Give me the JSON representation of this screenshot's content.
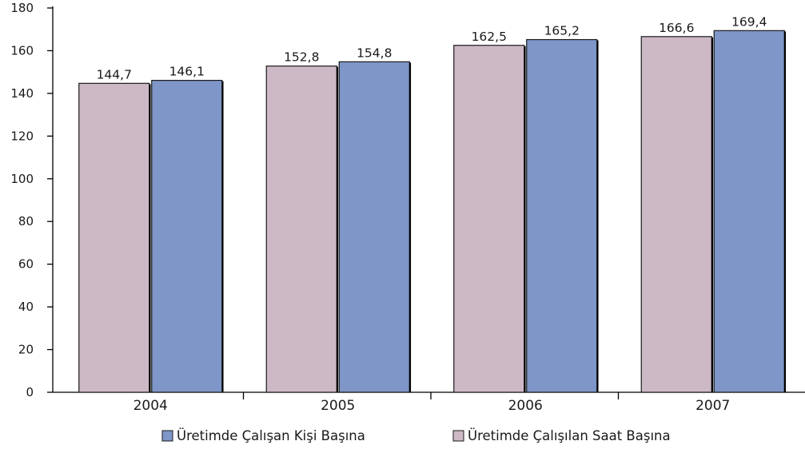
{
  "chart_data": {
    "type": "bar",
    "categories": [
      "2004",
      "2005",
      "2006",
      "2007"
    ],
    "series": [
      {
        "name": "Üretimde Çalışılan Saat Başına",
        "color": "#cdb9c6",
        "values": [
          144.7,
          152.8,
          162.5,
          166.6
        ],
        "labels": [
          "144,7",
          "152,8",
          "162,5",
          "166,6"
        ]
      },
      {
        "name": "Üretimde Çalışan Kişi Başına",
        "color": "#7e96c8",
        "values": [
          146.1,
          154.8,
          165.2,
          169.4
        ],
        "labels": [
          "146,1",
          "154,8",
          "165,2",
          "169,4"
        ]
      }
    ],
    "yticks": [
      0,
      20,
      40,
      60,
      80,
      100,
      120,
      140,
      160,
      180
    ],
    "ylim": [
      0,
      180
    ],
    "legend": {
      "placement": "bottom",
      "entries": [
        {
          "label": "Üretimde Çalışan Kişi Başına",
          "color": "#7e96c8"
        },
        {
          "label": "Üretimde Çalışılan Saat Başına",
          "color": "#cdb9c6"
        }
      ]
    },
    "grid": false
  }
}
